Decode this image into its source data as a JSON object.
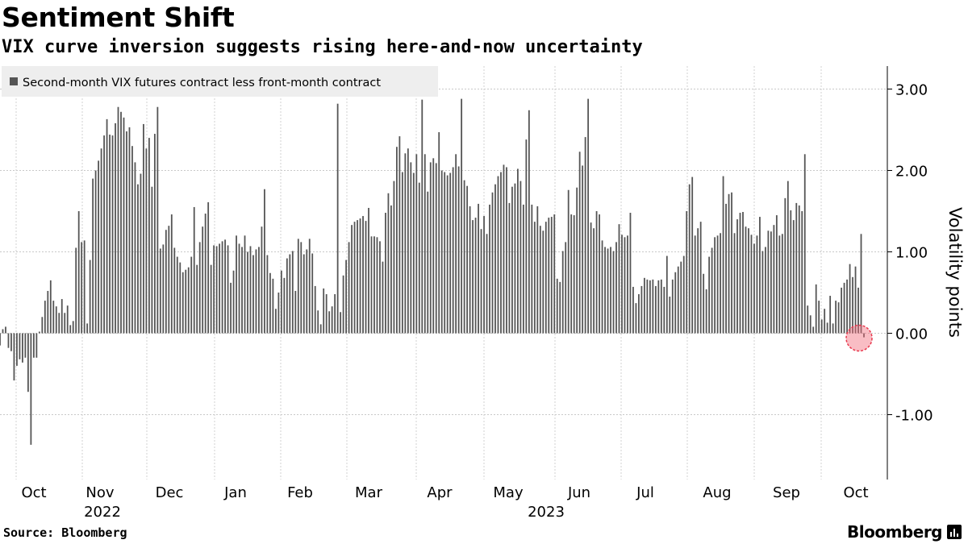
{
  "header": {
    "title": "Sentiment Shift",
    "subtitle": "VIX curve inversion suggests rising here-and-now uncertainty"
  },
  "footer": {
    "source": "Source: Bloomberg",
    "brand": "Bloomberg"
  },
  "chart_data": {
    "type": "bar",
    "title": "Sentiment Shift",
    "subtitle": "VIX curve inversion suggests rising here-and-now uncertainty",
    "ylabel": "Volatility points",
    "xlabel": "",
    "ylim": [
      -1.8,
      3.3
    ],
    "yticks": [
      3.0,
      2.0,
      1.0,
      0.0,
      -1.0
    ],
    "ytick_labels": [
      "3.00",
      "2.00",
      "1.00",
      "0.00",
      "-1.00"
    ],
    "grid": true,
    "legend": {
      "position": "top-left",
      "entries": [
        "Second-month VIX futures contract less front-month contract"
      ]
    },
    "bar_color": "#555555",
    "highlight_color": "#f26d7d",
    "x_month_labels": [
      "Oct",
      "Nov",
      "Dec",
      "Jan",
      "Feb",
      "Mar",
      "Apr",
      "May",
      "Jun",
      "Jul",
      "Aug",
      "Sep",
      "Oct"
    ],
    "x_year_labels": [
      "2022",
      "2023"
    ],
    "series": [
      {
        "name": "Second-month VIX futures contract less front-month contract",
        "values": [
          -0.15,
          0.05,
          0.08,
          -0.18,
          -0.22,
          -0.58,
          -0.4,
          -0.32,
          -0.36,
          -0.3,
          -0.72,
          -1.37,
          -0.3,
          -0.3,
          0.02,
          0.2,
          0.4,
          0.52,
          0.65,
          0.4,
          0.33,
          0.25,
          0.42,
          0.25,
          0.34,
          0.1,
          0.15,
          1.05,
          1.5,
          1.12,
          1.14,
          0.12,
          0.9,
          1.9,
          2.0,
          2.12,
          2.27,
          2.43,
          2.63,
          2.44,
          2.43,
          2.58,
          2.78,
          2.72,
          2.65,
          2.48,
          2.53,
          2.3,
          2.1,
          1.83,
          1.96,
          2.57,
          2.27,
          2.4,
          1.8,
          2.45,
          2.78,
          1.04,
          1.09,
          1.27,
          1.32,
          1.46,
          1.05,
          0.94,
          0.87,
          0.75,
          0.78,
          0.81,
          0.94,
          1.55,
          0.84,
          1.12,
          1.31,
          1.47,
          1.61,
          0.84,
          1.08,
          1.07,
          1.1,
          1.13,
          1.15,
          1.08,
          0.62,
          0.77,
          1.2,
          1.1,
          1.06,
          1.2,
          1.0,
          1.07,
          0.96,
          1.03,
          1.06,
          1.31,
          1.77,
          0.96,
          0.74,
          0.67,
          0.3,
          0.5,
          0.77,
          0.68,
          0.92,
          0.97,
          1.01,
          0.52,
          1.16,
          1.12,
          0.97,
          1.03,
          1.16,
          0.98,
          0.58,
          0.28,
          0.11,
          0.55,
          0.48,
          0.27,
          0.33,
          0.48,
          2.82,
          0.26,
          0.71,
          0.9,
          1.12,
          1.33,
          1.37,
          1.39,
          1.41,
          1.44,
          1.38,
          1.54,
          1.19,
          1.19,
          1.18,
          1.13,
          0.88,
          1.48,
          1.72,
          1.57,
          1.87,
          2.29,
          2.42,
          1.98,
          2.21,
          2.27,
          2.1,
          1.97,
          2.2,
          1.85,
          2.87,
          2.2,
          1.74,
          2.1,
          2.15,
          2.09,
          2.47,
          2.0,
          1.98,
          1.94,
          1.97,
          2.04,
          2.2,
          2.05,
          2.88,
          1.88,
          1.81,
          1.56,
          1.39,
          1.42,
          1.59,
          1.28,
          1.44,
          1.22,
          1.58,
          1.73,
          1.83,
          1.93,
          1.98,
          2.07,
          2.04,
          1.6,
          1.8,
          1.84,
          2.02,
          1.87,
          1.58,
          2.38,
          2.74,
          1.58,
          1.37,
          1.56,
          1.32,
          1.26,
          1.37,
          1.42,
          1.43,
          1.46,
          0.67,
          0.63,
          1.01,
          1.12,
          1.76,
          1.46,
          1.45,
          1.79,
          2.23,
          2.06,
          2.41,
          2.88,
          1.36,
          1.29,
          1.5,
          1.46,
          1.14,
          1.06,
          1.04,
          1.06,
          1.01,
          1.12,
          1.34,
          1.21,
          1.18,
          1.2,
          1.48,
          0.57,
          0.37,
          0.48,
          0.58,
          0.68,
          0.66,
          0.65,
          0.66,
          0.58,
          0.65,
          0.66,
          0.57,
          0.95,
          0.45,
          0.66,
          0.75,
          0.82,
          0.88,
          0.95,
          1.5,
          1.83,
          1.92,
          1.2,
          1.29,
          1.37,
          0.73,
          0.54,
          0.94,
          1.05,
          1.18,
          1.2,
          1.23,
          1.93,
          1.59,
          1.71,
          1.73,
          1.23,
          1.4,
          1.48,
          1.49,
          1.31,
          1.29,
          1.21,
          1.1,
          1.2,
          1.43,
          1.01,
          1.06,
          1.26,
          1.25,
          1.33,
          1.45,
          1.2,
          1.22,
          1.66,
          1.87,
          1.51,
          1.39,
          1.6,
          1.57,
          1.5,
          2.2,
          0.34,
          0.22,
          0.08,
          0.6,
          0.4,
          0.17,
          0.3,
          0.13,
          0.46,
          0.12,
          0.4,
          0.38,
          0.56,
          0.62,
          0.66,
          0.85,
          0.69,
          0.82,
          0.56,
          1.22,
          -0.05
        ]
      }
    ],
    "highlight_last": true
  }
}
